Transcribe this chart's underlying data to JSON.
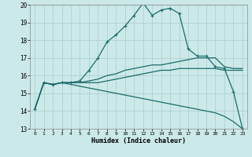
{
  "title": "",
  "xlabel": "Humidex (Indice chaleur)",
  "xlim": [
    -0.5,
    23.5
  ],
  "ylim": [
    13,
    20
  ],
  "xticks": [
    0,
    1,
    2,
    3,
    4,
    5,
    6,
    7,
    8,
    9,
    10,
    11,
    12,
    13,
    14,
    15,
    16,
    17,
    18,
    19,
    20,
    21,
    22,
    23
  ],
  "yticks": [
    13,
    14,
    15,
    16,
    17,
    18,
    19,
    20
  ],
  "background_color": "#cce9e9",
  "grid_color": "#aacccc",
  "line_color": "#1a6b6b",
  "line1_x": [
    0,
    1,
    2,
    3,
    4,
    5,
    6,
    7,
    8,
    9,
    10,
    11,
    12,
    13,
    14,
    15,
    16,
    17,
    18,
    19,
    20,
    21,
    22,
    23
  ],
  "line1_y": [
    14.1,
    15.6,
    15.5,
    15.6,
    15.6,
    15.7,
    16.3,
    17.0,
    17.9,
    18.3,
    18.8,
    19.4,
    20.1,
    19.4,
    19.7,
    19.8,
    19.5,
    17.5,
    17.1,
    17.1,
    16.5,
    16.4,
    15.1,
    13.0
  ],
  "line2_x": [
    0,
    1,
    2,
    3,
    4,
    5,
    6,
    7,
    8,
    9,
    10,
    11,
    12,
    13,
    14,
    15,
    16,
    17,
    18,
    19,
    20,
    21,
    22,
    23
  ],
  "line2_y": [
    14.1,
    15.6,
    15.5,
    15.6,
    15.6,
    15.6,
    15.7,
    15.8,
    16.0,
    16.1,
    16.3,
    16.4,
    16.5,
    16.6,
    16.6,
    16.7,
    16.8,
    16.9,
    17.0,
    17.0,
    17.0,
    16.5,
    16.4,
    16.4
  ],
  "line3_x": [
    0,
    1,
    2,
    3,
    4,
    5,
    6,
    7,
    8,
    9,
    10,
    11,
    12,
    13,
    14,
    15,
    16,
    17,
    18,
    19,
    20,
    21,
    22,
    23
  ],
  "line3_y": [
    14.1,
    15.6,
    15.5,
    15.6,
    15.6,
    15.6,
    15.6,
    15.6,
    15.7,
    15.8,
    15.9,
    16.0,
    16.1,
    16.2,
    16.3,
    16.3,
    16.4,
    16.4,
    16.4,
    16.4,
    16.4,
    16.3,
    16.3,
    16.3
  ],
  "line4_x": [
    0,
    1,
    2,
    3,
    4,
    5,
    6,
    7,
    8,
    9,
    10,
    11,
    12,
    13,
    14,
    15,
    16,
    17,
    18,
    19,
    20,
    21,
    22,
    23
  ],
  "line4_y": [
    14.1,
    15.6,
    15.5,
    15.6,
    15.5,
    15.4,
    15.3,
    15.2,
    15.1,
    15.0,
    14.9,
    14.8,
    14.7,
    14.6,
    14.5,
    14.4,
    14.3,
    14.2,
    14.1,
    14.0,
    13.9,
    13.7,
    13.4,
    13.0
  ],
  "marker": "+",
  "marker_size": 3,
  "linewidth": 0.9
}
